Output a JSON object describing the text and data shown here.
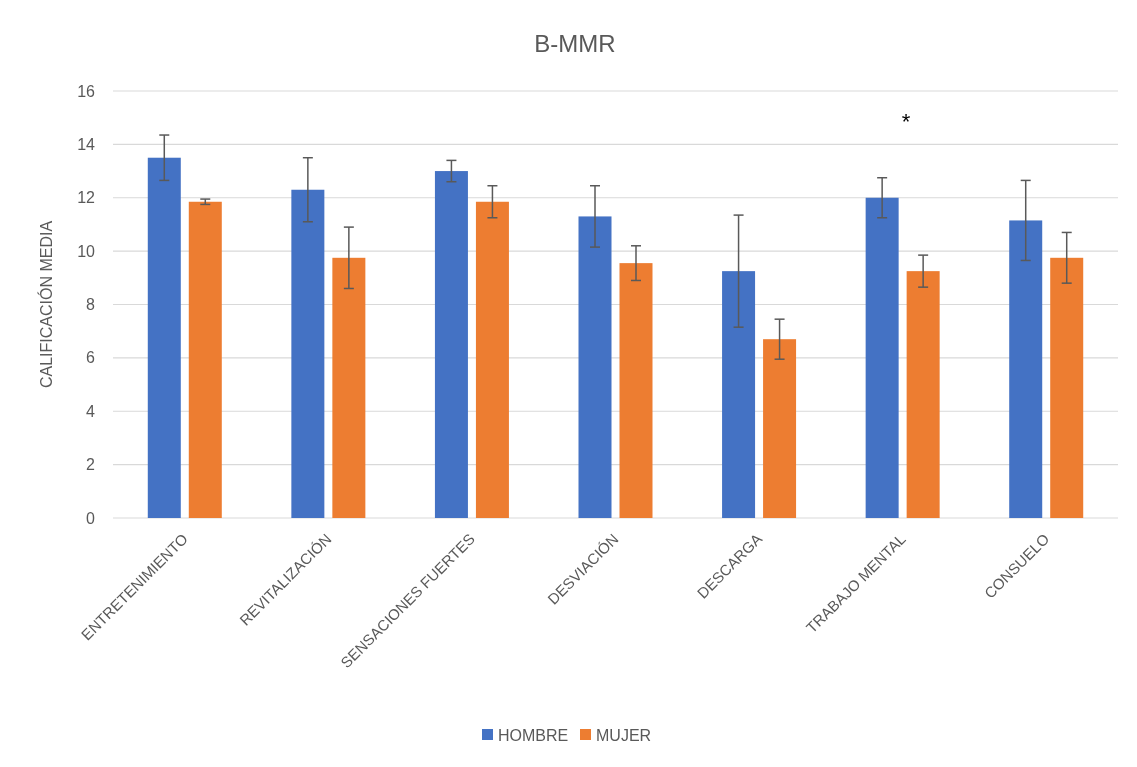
{
  "chart_data": {
    "type": "bar",
    "title": "B-MMR",
    "ylabel": "CALIFICACIÓN MEDIA",
    "categories": [
      "ENTRETENIMIENTO",
      "REVITALIZACIÓN",
      "SENSACIONES FUERTES",
      "DESVIACIÓN",
      "DESCARGA",
      "TRABAJO MENTAL",
      "CONSUELO"
    ],
    "series": [
      {
        "name": "HOMBRE",
        "color": "#4472c4",
        "values": [
          13.5,
          12.3,
          13.0,
          11.3,
          9.25,
          12.0,
          11.15
        ],
        "errors": [
          0.85,
          1.2,
          0.4,
          1.15,
          2.1,
          0.75,
          1.5
        ]
      },
      {
        "name": "MUJER",
        "color": "#ed7d31",
        "values": [
          11.85,
          9.75,
          11.85,
          9.55,
          6.7,
          9.25,
          9.75
        ],
        "errors": [
          0.1,
          1.15,
          0.6,
          0.65,
          0.75,
          0.6,
          0.95
        ]
      }
    ],
    "ylim": [
      0,
      16
    ],
    "yticks": [
      0,
      2,
      4,
      6,
      8,
      10,
      12,
      14,
      16
    ],
    "grid": "y",
    "legend": "bottom",
    "annotations": [
      "*"
    ]
  }
}
